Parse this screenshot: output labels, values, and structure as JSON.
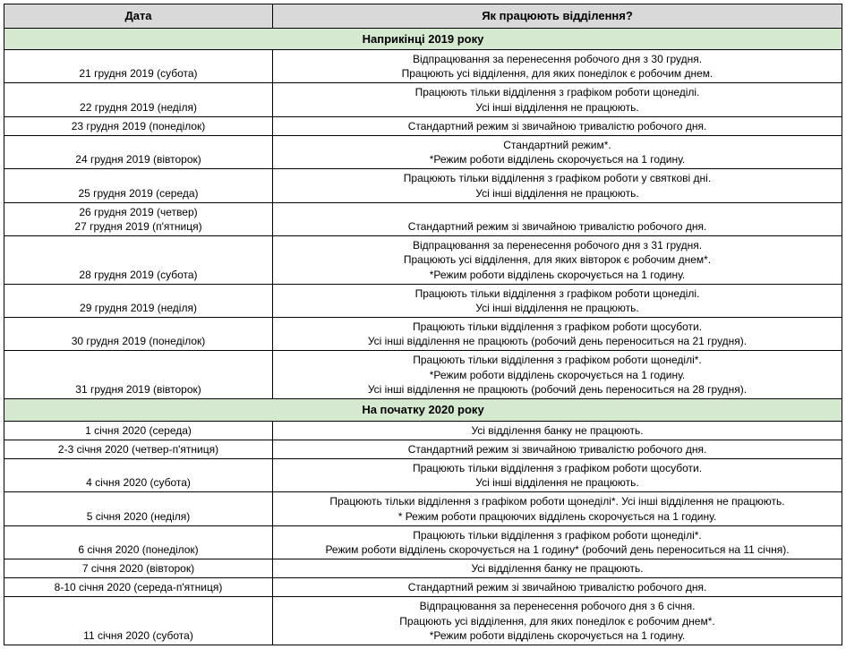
{
  "headers": {
    "date": "Дата",
    "desc": "Як працюють відділення?"
  },
  "sections": [
    {
      "title": "Наприкінці 2019 року",
      "rows": [
        {
          "date": "21 грудня 2019 (субота)",
          "desc": "Відпрацювання за перенесення робочого дня з 30 грудня.\nПрацюють усі відділення, для яких понеділок є робочим днем."
        },
        {
          "date": "22 грудня 2019 (неділя)",
          "desc": "Працюють тільки відділення з графіком роботи щонеділі.\nУсі інші відділення не працюють."
        },
        {
          "date": "23 грудня 2019 (понеділок)",
          "desc": "Стандартний режим зі звичайною тривалістю робочого дня."
        },
        {
          "date": "24 грудня 2019 (вівторок)",
          "desc": "Стандартний режим*.\n*Режим роботи відділень скорочується на 1 годину."
        },
        {
          "date": "25 грудня 2019 (середа)",
          "desc": "Працюють тільки відділення з графіком роботи у святкові дні.\nУсі інші відділення не працюють."
        },
        {
          "date": "26 грудня 2019 (четвер)\n27 грудня 2019 (п'ятниця)",
          "desc": "Стандартний режим зі звичайною тривалістю робочого дня."
        },
        {
          "date": "28 грудня 2019 (субота)",
          "desc": "Відпрацювання за перенесення робочого дня з 31 грудня.\nПрацюють усі відділення, для яких вівторок є робочим днем*.\n*Режим роботи відділень скорочується на 1 годину."
        },
        {
          "date": "29 грудня 2019 (неділя)",
          "desc": "Працюють тільки відділення з графіком роботи щонеділі.\nУсі інші відділення не працюють."
        },
        {
          "date": "30 грудня 2019 (понеділок)",
          "desc": "Працюють тільки відділення з графіком роботи щосуботи.\nУсі інші відділення не працюють (робочий день переноситься на 21 грудня)."
        },
        {
          "date": "31 грудня 2019 (вівторок)",
          "desc": "Працюють тільки відділення з графіком роботи щонеділі*.\n*Режим роботи відділень скорочується на 1 годину.\nУсі інші відділення не працюють (робочий день переноситься на 28 грудня)."
        }
      ]
    },
    {
      "title": "На початку 2020 року",
      "rows": [
        {
          "date": "1 січня 2020 (середа)",
          "desc": "Усі відділення банку не працюють."
        },
        {
          "date": "2-3 січня 2020 (четвер-п'ятниця)",
          "desc": "Стандартний режим зі звичайною тривалістю робочого дня."
        },
        {
          "date": "4 січня 2020 (субота)",
          "desc": "Працюють тільки відділення з графіком роботи щосуботи.\nУсі інші відділення не працюють."
        },
        {
          "date": "5 січня 2020 (неділя)",
          "desc": "Працюють тільки відділення з графіком роботи щонеділі*. Усі інші відділення не працюють.\n* Режим роботи працюючих відділень скорочується на 1 годину."
        },
        {
          "date": "6 січня 2020 (понеділок)",
          "desc": "Працюють тільки відділення з графіком роботи щонеділі*.\nРежим роботи відділень скорочується на 1 годину* (робочий день переноситься на 11 січня)."
        },
        {
          "date": "7 січня 2020 (вівторок)",
          "desc": "Усі відділення банку не працюють."
        },
        {
          "date": "8-10 січня 2020 (середа-п'ятниця)",
          "desc": "Стандартний режим зі звичайною тривалістю робочого дня."
        },
        {
          "date": "11 січня 2020 (субота)",
          "desc": "Відпрацювання за перенесення робочого дня з 6 січня.\nПрацюють усі відділення, для яких понеділок є робочим днем*.\n*Режим роботи відділень скорочується на 1 годину."
        }
      ]
    }
  ],
  "styles": {
    "header_bg": "#d9d9d9",
    "section_bg": "#d5e8d0",
    "border_color": "#000000",
    "font_family": "Arial, sans-serif",
    "base_font_size": 12,
    "header_font_size": 13,
    "date_col_width": 300,
    "total_width": 945
  }
}
